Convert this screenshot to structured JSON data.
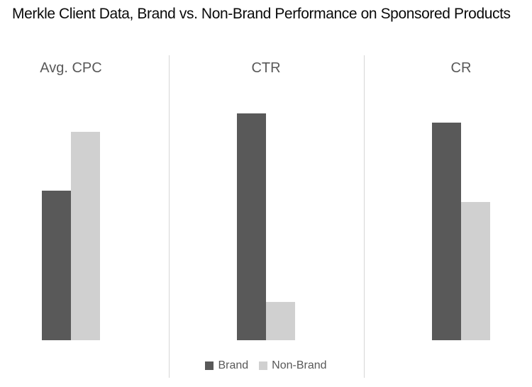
{
  "chart_data": {
    "type": "bar",
    "title": "Merkle Client Data, Brand vs. Non-Brand Performance on Sponsored Products",
    "categories": [
      "Avg. CPC",
      "CTR",
      "CR"
    ],
    "series": [
      {
        "name": "Brand",
        "color": "#595959",
        "values": [
          66,
          100,
          96
        ]
      },
      {
        "name": "Non-Brand",
        "color": "#d0d0d0",
        "values": [
          92,
          17,
          61
        ]
      }
    ],
    "xlabel": "",
    "ylabel": "",
    "ylim": [
      0,
      100
    ],
    "grid": false,
    "axis_ticks_shown": false,
    "value_scale": "relative; no value axis shown, tallest bar = 100",
    "legend_position": "bottom-center",
    "panel_dividers": true
  },
  "colors": {
    "brand": "#595959",
    "non_brand": "#d0d0d0",
    "divider": "#d6d6d6",
    "category_label_text": "#595959",
    "legend_text": "#595959",
    "title_text": "#0a0a0a",
    "background": "#ffffff"
  }
}
